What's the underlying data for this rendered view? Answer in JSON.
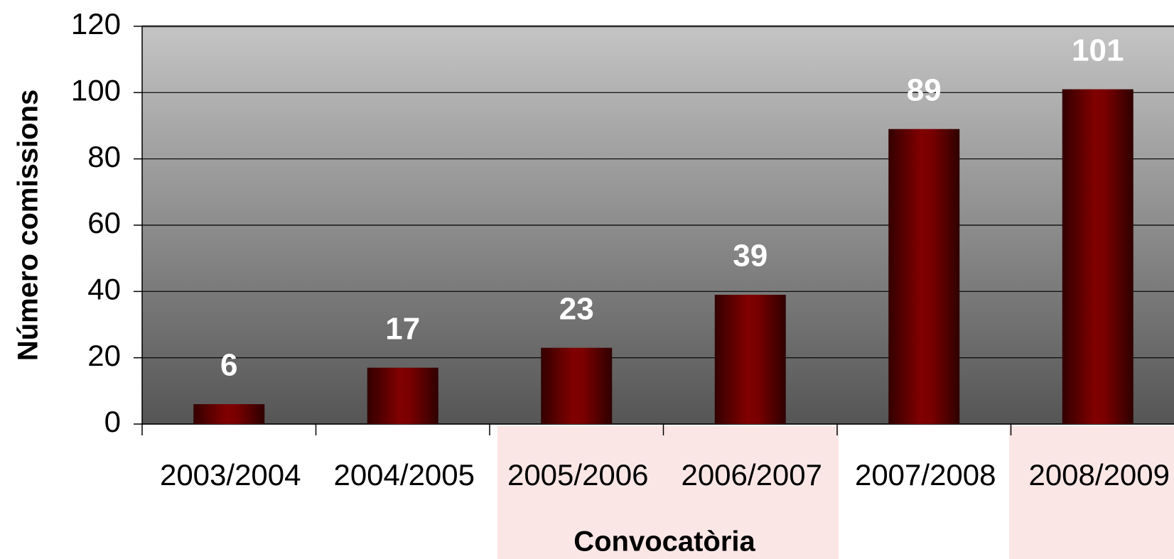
{
  "chart_data": {
    "type": "bar",
    "categories": [
      "2003/2004",
      "2004/2005",
      "2005/2006",
      "2006/2007",
      "2007/2008",
      "2008/2009"
    ],
    "values": [
      6,
      17,
      23,
      39,
      89,
      101
    ],
    "color": "#800000",
    "xlabel": "Convocatòria",
    "ylabel": "Número comissions",
    "ylim": [
      0,
      120
    ],
    "yticks": [
      0,
      20,
      40,
      60,
      80,
      100,
      120
    ],
    "grid": true
  }
}
